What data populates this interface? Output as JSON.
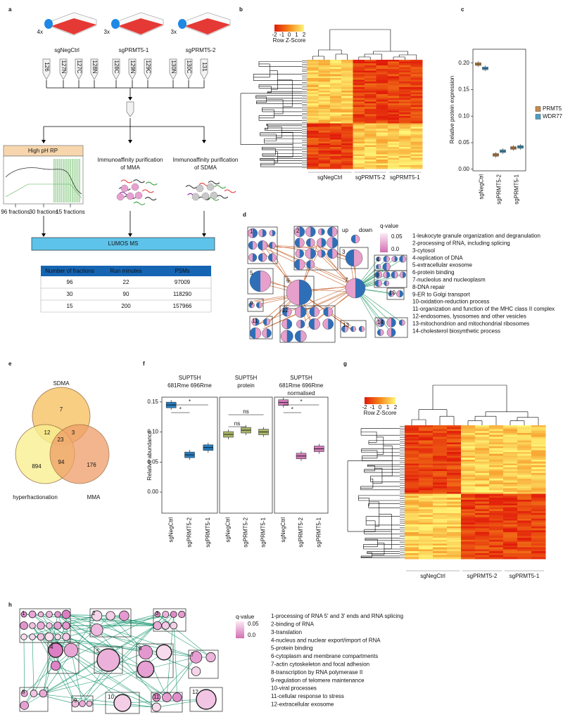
{
  "panel_labels": [
    "a",
    "b",
    "c",
    "d",
    "e",
    "f",
    "g",
    "h"
  ],
  "panel_a": {
    "groups": [
      {
        "count": "4x",
        "name": "sgNegCtrl"
      },
      {
        "count": "3x",
        "name": "sgPRMT5-1"
      },
      {
        "count": "3x",
        "name": "sgPRMT5-2"
      }
    ],
    "tags": [
      "126",
      "127N",
      "127C",
      "128N",
      "128C",
      "129N",
      "129C",
      "130N",
      "130C",
      "131"
    ],
    "rp_title": "High pH RP",
    "fractions": [
      "96 fractions",
      "30 fractions",
      "15 fractions"
    ],
    "purifications": [
      [
        "Immunoaffinity purification",
        "of MMA"
      ],
      [
        "Immunoaffinity purification",
        "of SDMA"
      ]
    ],
    "ms": "LUMOS MS",
    "table": {
      "header": [
        "Number of fractions",
        "Run minutes",
        "PSMs"
      ],
      "rows": [
        [
          96,
          22,
          97009
        ],
        [
          30,
          90,
          118290
        ],
        [
          15,
          200,
          157966
        ]
      ]
    }
  },
  "panel_b": {
    "legend_title": "Row Z-Score",
    "legend_ticks": [
      -2,
      -1,
      0,
      1,
      2
    ],
    "columns": [
      "sgNegCtrl",
      "sgPRMT5-2",
      "sgPRMT5-1"
    ]
  },
  "chart_data": [
    {
      "type": "box",
      "ylabel": "Relative protein expression",
      "categories": [
        "sgNegCtrl",
        "sgPRMT5-2",
        "sgPRMT5-1"
      ],
      "ylim": [
        -0.003,
        0.226
      ],
      "yticks": [
        {
          "value": 0,
          "label": "0.00"
        },
        0.05,
        {
          "value": 0.1,
          "label": "0.10"
        },
        0.15,
        {
          "value": 0.2,
          "label": "0.20"
        }
      ],
      "series": [
        {
          "name": "PRMT5",
          "color": "#c98b4a",
          "values": [
            0.198,
            0.027,
            0.04
          ]
        },
        {
          "name": "WDR77",
          "color": "#4aa0c8",
          "values": [
            0.19,
            0.034,
            0.042
          ]
        }
      ]
    },
    {
      "type": "box",
      "ylabel": "Relative abundance",
      "ylim": [
        -0.035,
        0.158
      ],
      "yticks": [
        {
          "value": 0,
          "label": "0.00"
        },
        0.05,
        {
          "value": 0.1,
          "label": "0.10"
        },
        0.15
      ],
      "facets": [
        {
          "title": [
            "SUPT5H",
            "681Rme 696Rme"
          ],
          "categories": [
            "sgNegCtrl",
            "sgPRMT5-2",
            "sgPRMT5-1"
          ],
          "color": "#2a7fc0",
          "values": [
            0.145,
            0.062,
            0.074
          ],
          "significance": [
            "*",
            "*"
          ]
        },
        {
          "title": [
            "SUPT5H",
            "protein"
          ],
          "categories": [
            "sgNegCtrl",
            "sgPRMT5-2",
            "sgPRMT5-1"
          ],
          "color": "#a8b56a",
          "values": [
            0.096,
            0.103,
            0.1
          ],
          "significance": [
            "ns",
            "ns"
          ]
        },
        {
          "title": [
            "SUPT5H",
            "681Rme 696Rme",
            "normalised"
          ],
          "categories": [
            "sgNegCtrl",
            "sgPRMT5-2",
            "sgPRMT5-1"
          ],
          "color": "#d07bb8",
          "values": [
            0.149,
            0.06,
            0.072
          ],
          "significance": [
            "*",
            "*"
          ]
        }
      ]
    }
  ],
  "panel_d": {
    "legend": {
      "up": "up",
      "down": "down",
      "title": "q-value",
      "scale": [
        "0.05",
        "0.0"
      ]
    },
    "node_labels": [
      1,
      2,
      3,
      4,
      5,
      6,
      7,
      8,
      9,
      10,
      11,
      12,
      13,
      14
    ],
    "terms": [
      "1-leukocyte granule organization and degranulation",
      "2-processing of RNA, including splicing",
      "3-cytosol",
      "4-replication of DNA",
      "5-extracellular exosome",
      "6-protein binding",
      "7-nucleolus and nucleoplasm",
      "8-DNA repair",
      "9-ER to Golgi transport",
      "10-oxidation-reduction process",
      "11-organization and function of the MHC class II complex",
      "12-endosomes, lysosomes and other vesicles",
      "13-mitochondrion and mitochondrial ribosomes",
      "14-cholesterol biosynthetic process"
    ]
  },
  "panel_e": {
    "sets": [
      "SDMA",
      "hyperfractionation",
      "MMA"
    ],
    "regions": [
      7,
      12,
      3,
      23,
      894,
      94,
      176
    ]
  },
  "panel_g": {
    "legend_title": "Row Z-Score",
    "legend_ticks": [
      -2,
      -1,
      0,
      1,
      2
    ],
    "columns": [
      "sgNegCtrl",
      "sgPRMT5-2",
      "sgPRMT5-1"
    ]
  },
  "panel_h": {
    "legend": {
      "title": "q-value",
      "scale": [
        "0.05",
        "0.0"
      ]
    },
    "node_labels": [
      1,
      2,
      3,
      4,
      5,
      6,
      7,
      8,
      9,
      10,
      11,
      12
    ],
    "terms": [
      "1-processing of RNA 5' and 3' ends and RNA splicing",
      "2-binding of RNA",
      "3-translation",
      "4-nucleus and nuclear export/import of RNA",
      "5-protein binding",
      "6-cytoplasm and membrane compartments",
      "7-actin cytoskeleton and focal adhesion",
      "8-transcription by RNA polymerase II",
      "9-regulation of telomere maintenance",
      "10-viral processes",
      "11-cellular response to stress",
      "12-extracellular exosome"
    ]
  }
}
